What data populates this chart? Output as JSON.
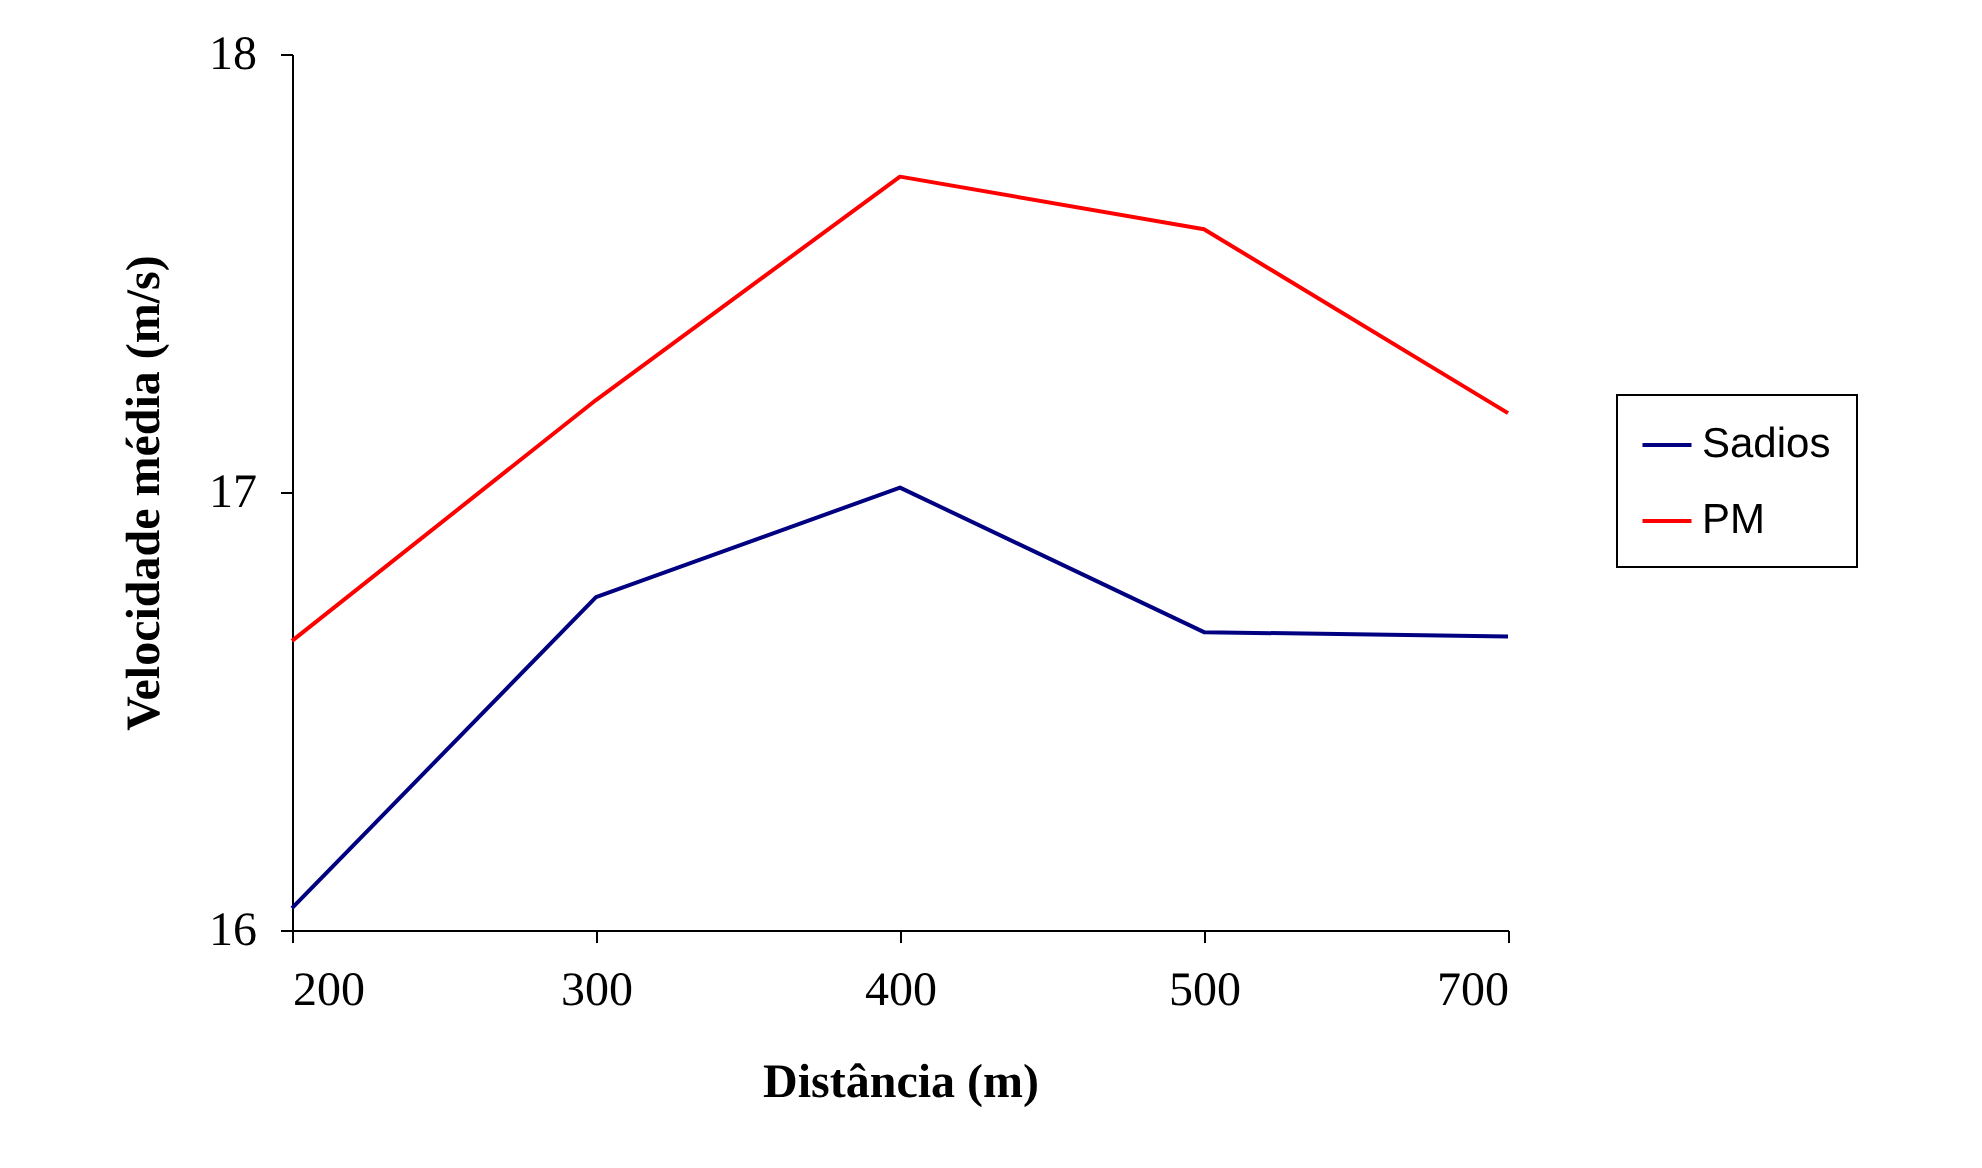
{
  "chart_data": {
    "type": "line",
    "xlabel": "Distância (m)",
    "ylabel": "Velocidade média (m/s)",
    "categories": [
      "200",
      "300",
      "400",
      "500",
      "700"
    ],
    "series": [
      {
        "name": "Sadios",
        "color": "#000080",
        "values": [
          16.05,
          16.76,
          17.01,
          16.68,
          16.67
        ]
      },
      {
        "name": "PM",
        "color": "#ff0000",
        "values": [
          16.66,
          17.21,
          17.72,
          17.6,
          17.18
        ]
      }
    ],
    "ylim": [
      16,
      18
    ],
    "yticks": [
      16,
      17,
      18
    ],
    "grid": false,
    "legend": "right",
    "marker": "none",
    "line_style": "solid"
  }
}
